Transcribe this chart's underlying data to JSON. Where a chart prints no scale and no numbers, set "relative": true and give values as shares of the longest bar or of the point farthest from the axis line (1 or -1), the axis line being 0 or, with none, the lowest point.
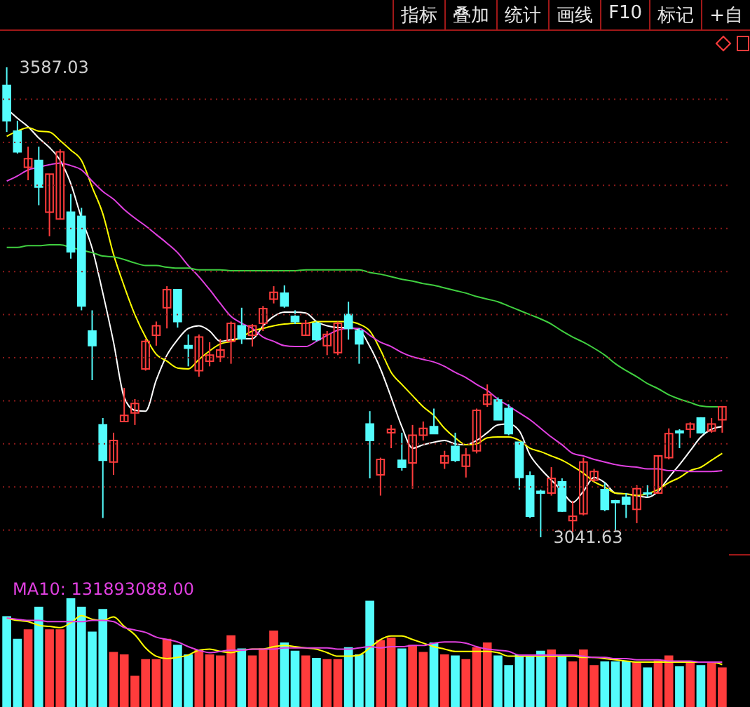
{
  "chart_data": [
    {
      "type": "candlestick",
      "categories": [
        null,
        null,
        null,
        null,
        null,
        null,
        null,
        null,
        null,
        null,
        null,
        null,
        null,
        null,
        null,
        null,
        null,
        null,
        null,
        null,
        null,
        null,
        null,
        null,
        null,
        null,
        null,
        null,
        null,
        null,
        null,
        null,
        null,
        null,
        null,
        null,
        null,
        null,
        null,
        null,
        null,
        null,
        null,
        null,
        null,
        null,
        null,
        null,
        null,
        null,
        null,
        null,
        null,
        null,
        null,
        null,
        null,
        null,
        null,
        null,
        null,
        null,
        null,
        null,
        null,
        null,
        null,
        null
      ],
      "ohlc": [
        [
          3566,
          3587.03,
          3512,
          3525
        ],
        [
          3513,
          3525,
          3487,
          3489
        ],
        [
          3471,
          3495,
          3456,
          3481
        ],
        [
          3479,
          3495,
          3427,
          3448
        ],
        [
          3419,
          3463,
          3391,
          3463
        ],
        [
          3411,
          3492,
          3411,
          3489
        ],
        [
          3419,
          3440,
          3365,
          3373
        ],
        [
          3414,
          3424,
          3305,
          3310
        ],
        [
          3281,
          3305,
          3224,
          3264
        ],
        [
          3172,
          3180,
          3064,
          3131
        ],
        [
          3129,
          3163,
          3114,
          3154
        ],
        [
          3176,
          3215,
          3176,
          3183
        ],
        [
          3186,
          3202,
          3172,
          3197
        ],
        [
          3237,
          3272,
          3235,
          3269
        ],
        [
          3276,
          3292,
          3264,
          3287
        ],
        [
          3308,
          3333,
          3284,
          3329
        ],
        [
          3329,
          3329,
          3285,
          3292
        ],
        [
          3264,
          3277,
          3240,
          3261
        ],
        [
          3235,
          3277,
          3228,
          3274
        ],
        [
          3246,
          3268,
          3240,
          3253
        ],
        [
          3251,
          3272,
          3245,
          3259
        ],
        [
          3269,
          3292,
          3243,
          3290
        ],
        [
          3287,
          3308,
          3266,
          3272
        ],
        [
          3276,
          3289,
          3263,
          3287
        ],
        [
          3290,
          3310,
          3281,
          3307
        ],
        [
          3318,
          3333,
          3313,
          3326
        ],
        [
          3325,
          3334,
          3308,
          3310
        ],
        [
          3298,
          3305,
          3289,
          3292
        ],
        [
          3276,
          3294,
          3276,
          3290
        ],
        [
          3290,
          3292,
          3269,
          3271
        ],
        [
          3264,
          3281,
          3253,
          3277
        ],
        [
          3256,
          3292,
          3253,
          3290
        ],
        [
          3300,
          3315,
          3271,
          3284
        ],
        [
          3281,
          3284,
          3243,
          3266
        ],
        [
          3173,
          3188,
          3110,
          3154
        ],
        [
          3114,
          3134,
          3090,
          3132
        ],
        [
          3163,
          3172,
          3145,
          3167
        ],
        [
          3131,
          3163,
          3119,
          3123
        ],
        [
          3128,
          3172,
          3098,
          3160
        ],
        [
          3160,
          3176,
          3154,
          3168
        ],
        [
          3170,
          3191,
          3162,
          3162
        ],
        [
          3128,
          3142,
          3121,
          3136
        ],
        [
          3147,
          3163,
          3129,
          3131
        ],
        [
          3124,
          3145,
          3111,
          3137
        ],
        [
          3142,
          3191,
          3139,
          3189
        ],
        [
          3196,
          3219,
          3193,
          3207
        ],
        [
          3201,
          3204,
          3178,
          3178
        ],
        [
          3191,
          3196,
          3160,
          3162
        ],
        [
          3152,
          3152,
          3097,
          3111
        ],
        [
          3113,
          3118,
          3064,
          3066
        ],
        [
          3095,
          3097,
          3041.63,
          3093
        ],
        [
          3093,
          3123,
          3090,
          3110
        ],
        [
          3106,
          3110,
          3071,
          3072
        ],
        [
          3061,
          3084,
          3048,
          3066
        ],
        [
          3069,
          3134,
          3067,
          3129
        ],
        [
          3108,
          3121,
          3106,
          3118
        ],
        [
          3097,
          3105,
          3072,
          3074
        ],
        [
          3084,
          3085,
          3049,
          3082
        ],
        [
          3088,
          3093,
          3064,
          3080
        ],
        [
          3074,
          3102,
          3058,
          3098
        ],
        [
          3093,
          3102,
          3088,
          3092
        ],
        [
          3093,
          3137,
          3092,
          3136
        ],
        [
          3134,
          3168,
          3132,
          3162
        ],
        [
          3165,
          3167,
          3145,
          3163
        ],
        [
          3167,
          3175,
          3157,
          3173
        ],
        [
          3180,
          3181,
          3162,
          3163
        ],
        [
          3165,
          3180,
          3163,
          3173
        ],
        [
          3178,
          3194,
          3163,
          3193
        ]
      ],
      "colors": [
        "#54fcfc",
        "#54fcfc",
        "#ff3c3c",
        "#54fcfc",
        "#ff3c3c",
        "#ff3c3c",
        "#54fcfc",
        "#54fcfc",
        "#54fcfc",
        "#54fcfc",
        "#ff3c3c",
        "#ff3c3c",
        "#ff3c3c",
        "#ff3c3c",
        "#ff3c3c",
        "#ff3c3c",
        "#54fcfc",
        "#54fcfc",
        "#ff3c3c",
        "#ff3c3c",
        "#ff3c3c",
        "#ff3c3c",
        "#54fcfc",
        "#ff3c3c",
        "#ff3c3c",
        "#ff3c3c",
        "#54fcfc",
        "#54fcfc",
        "#ff3c3c",
        "#54fcfc",
        "#ff3c3c",
        "#ff3c3c",
        "#54fcfc",
        "#54fcfc",
        "#54fcfc",
        "#ff3c3c",
        "#ff3c3c",
        "#54fcfc",
        "#ff3c3c",
        "#ff3c3c",
        "#54fcfc",
        "#ff3c3c",
        "#54fcfc",
        "#ff3c3c",
        "#ff3c3c",
        "#ff3c3c",
        "#54fcfc",
        "#54fcfc",
        "#54fcfc",
        "#54fcfc",
        "#54fcfc",
        "#ff3c3c",
        "#54fcfc",
        "#ff3c3c",
        "#ff3c3c",
        "#ff3c3c",
        "#54fcfc",
        "#54fcfc",
        "#54fcfc",
        "#ff3c3c",
        "#54fcfc",
        "#ff3c3c",
        "#ff3c3c",
        "#54fcfc",
        "#ff3c3c",
        "#54fcfc",
        "#ff3c3c",
        "#ff3c3c"
      ],
      "series": [
        {
          "type": "line",
          "color": "#ffffff",
          "values": [
            3539,
            3528,
            3518,
            3505,
            3494,
            3479,
            3452,
            3412,
            3377,
            3325,
            3268,
            3204,
            3189,
            3188,
            3224,
            3253,
            3271,
            3284,
            3287,
            3281,
            3269,
            3271,
            3272,
            3272,
            3287,
            3298,
            3303,
            3303,
            3302,
            3292,
            3287,
            3285,
            3285,
            3282,
            3263,
            3237,
            3204,
            3170,
            3145,
            3149,
            3152,
            3154,
            3150,
            3149,
            3154,
            3163,
            3172,
            3173,
            3165,
            3137,
            3121,
            3108,
            3095,
            3082,
            3095,
            3111,
            3105,
            3093,
            3092,
            3090,
            3088,
            3095,
            3111,
            3126,
            3142,
            3158,
            3167,
            3170
          ]
        },
        {
          "type": "line",
          "color": "#ffff00",
          "values": [
            3507,
            3513,
            3517,
            3513,
            3512,
            3502,
            3491,
            3479,
            3448,
            3417,
            3370,
            3333,
            3300,
            3274,
            3254,
            3246,
            3238,
            3237,
            3248,
            3258,
            3266,
            3269,
            3274,
            3281,
            3284,
            3287,
            3289,
            3290,
            3290,
            3292,
            3292,
            3292,
            3292,
            3289,
            3281,
            3259,
            3233,
            3219,
            3206,
            3193,
            3183,
            3168,
            3157,
            3149,
            3150,
            3157,
            3158,
            3158,
            3154,
            3145,
            3141,
            3136,
            3131,
            3124,
            3116,
            3106,
            3100,
            3093,
            3092,
            3090,
            3092,
            3097,
            3105,
            3111,
            3119,
            3123,
            3131,
            3139
          ]
        },
        {
          "type": "line",
          "color": "#e040e0",
          "values": [
            3455,
            3461,
            3468,
            3471,
            3474,
            3476,
            3473,
            3468,
            3455,
            3443,
            3434,
            3422,
            3412,
            3403,
            3393,
            3383,
            3372,
            3357,
            3344,
            3329,
            3313,
            3298,
            3290,
            3284,
            3274,
            3269,
            3264,
            3263,
            3263,
            3269,
            3276,
            3282,
            3284,
            3284,
            3276,
            3268,
            3263,
            3256,
            3251,
            3248,
            3245,
            3240,
            3233,
            3227,
            3219,
            3212,
            3202,
            3194,
            3186,
            3178,
            3168,
            3158,
            3149,
            3139,
            3136,
            3132,
            3129,
            3126,
            3124,
            3123,
            3121,
            3121,
            3119,
            3119,
            3118,
            3118,
            3118,
            3119
          ]
        },
        {
          "type": "line",
          "color": "#40d040",
          "values": [
            3378,
            3378,
            3380,
            3380,
            3381,
            3381,
            3378,
            3375,
            3372,
            3368,
            3367,
            3364,
            3360,
            3357,
            3357,
            3355,
            3354,
            3354,
            3352,
            3352,
            3352,
            3351,
            3351,
            3351,
            3351,
            3351,
            3351,
            3351,
            3352,
            3352,
            3352,
            3352,
            3352,
            3352,
            3349,
            3347,
            3344,
            3341,
            3339,
            3336,
            3334,
            3331,
            3328,
            3325,
            3321,
            3318,
            3315,
            3310,
            3305,
            3300,
            3295,
            3289,
            3281,
            3274,
            3268,
            3261,
            3253,
            3243,
            3235,
            3228,
            3220,
            3214,
            3207,
            3202,
            3198,
            3194,
            3193,
            3193
          ]
        }
      ],
      "yticks": [
        {
          "value": 3050,
          "label": null
        },
        {
          "value": 3100,
          "label": null
        },
        {
          "value": 3150,
          "label": null
        },
        {
          "value": 3200,
          "label": null
        },
        {
          "value": 3250,
          "label": null
        },
        {
          "value": 3300,
          "label": null
        },
        {
          "value": 3350,
          "label": null
        },
        {
          "value": 3400,
          "label": null
        },
        {
          "value": 3450,
          "label": null
        },
        {
          "value": 3500,
          "label": null
        },
        {
          "value": 3550,
          "label": null
        }
      ],
      "grid": "y",
      "tick_labels": false,
      "annotations": [
        "3587.03",
        "3041.63",
        "指标",
        "叠加",
        "统计",
        "画线",
        "F10",
        "标记",
        "+自"
      ]
    },
    {
      "type": "bar",
      "relative": true,
      "categories": [
        null,
        null,
        null,
        null,
        null,
        null,
        null,
        null,
        null,
        null,
        null,
        null,
        null,
        null,
        null,
        null,
        null,
        null,
        null,
        null,
        null,
        null,
        null,
        null,
        null,
        null,
        null,
        null,
        null,
        null,
        null,
        null,
        null,
        null,
        null,
        null,
        null,
        null,
        null,
        null,
        null,
        null,
        null,
        null,
        null,
        null,
        null,
        null,
        null,
        null,
        null,
        null,
        null,
        null,
        null,
        null,
        null,
        null,
        null,
        null,
        null,
        null,
        null,
        null,
        null,
        null,
        null,
        null
      ],
      "series": [
        {
          "type": "bar",
          "values": [
            0.85,
            0.66,
            0.74,
            0.93,
            0.74,
            0.74,
            1,
            0.93,
            0.72,
            0.91,
            0.55,
            0.53,
            0.35,
            0.49,
            0.49,
            0.66,
            0.61,
            0.53,
            0.57,
            0.53,
            0.52,
            0.69,
            0.58,
            0.52,
            0.58,
            0.73,
            0.63,
            0.56,
            0.52,
            0.5,
            0.49,
            0.49,
            0.59,
            0.53,
            0.98,
            0.65,
            0.67,
            0.58,
            0.61,
            0.55,
            0.63,
            0.53,
            0.52,
            0.49,
            0.59,
            0.63,
            0.52,
            0.44,
            0.53,
            0.52,
            0.56,
            0.57,
            0.53,
            0.47,
            0.57,
            0.44,
            0.47,
            0.47,
            0.47,
            0.47,
            0.42,
            0.48,
            0.52,
            0.43,
            0.47,
            0.44,
            0.47,
            0.42
          ],
          "colors": [
            "#54fcfc",
            "#54fcfc",
            "#ff3c3c",
            "#54fcfc",
            "#ff3c3c",
            "#ff3c3c",
            "#54fcfc",
            "#54fcfc",
            "#54fcfc",
            "#54fcfc",
            "#ff3c3c",
            "#ff3c3c",
            "#ff3c3c",
            "#ff3c3c",
            "#ff3c3c",
            "#ff3c3c",
            "#54fcfc",
            "#54fcfc",
            "#ff3c3c",
            "#ff3c3c",
            "#ff3c3c",
            "#ff3c3c",
            "#54fcfc",
            "#ff3c3c",
            "#ff3c3c",
            "#ff3c3c",
            "#54fcfc",
            "#54fcfc",
            "#ff3c3c",
            "#54fcfc",
            "#ff3c3c",
            "#ff3c3c",
            "#54fcfc",
            "#54fcfc",
            "#54fcfc",
            "#ff3c3c",
            "#ff3c3c",
            "#54fcfc",
            "#ff3c3c",
            "#ff3c3c",
            "#54fcfc",
            "#ff3c3c",
            "#54fcfc",
            "#ff3c3c",
            "#ff3c3c",
            "#ff3c3c",
            "#54fcfc",
            "#54fcfc",
            "#54fcfc",
            "#54fcfc",
            "#54fcfc",
            "#ff3c3c",
            "#54fcfc",
            "#ff3c3c",
            "#ff3c3c",
            "#ff3c3c",
            "#54fcfc",
            "#54fcfc",
            "#54fcfc",
            "#ff3c3c",
            "#54fcfc",
            "#ff3c3c",
            "#ff3c3c",
            "#54fcfc",
            "#ff3c3c",
            "#54fcfc",
            "#ff3c3c",
            "#ff3c3c"
          ]
        },
        {
          "type": "line",
          "color": "#ffff00",
          "values": [
            0.84,
            0.82,
            0.81,
            0.78,
            0.77,
            0.76,
            0.8,
            0.86,
            0.83,
            0.82,
            0.85,
            0.77,
            0.7,
            0.59,
            0.52,
            0.5,
            0.51,
            0.53,
            0.57,
            0.58,
            0.56,
            0.55,
            0.57,
            0.58,
            0.58,
            0.6,
            0.61,
            0.6,
            0.59,
            0.58,
            0.55,
            0.52,
            0.52,
            0.53,
            0.59,
            0.66,
            0.69,
            0.69,
            0.66,
            0.63,
            0.6,
            0.58,
            0.56,
            0.56,
            0.56,
            0.56,
            0.55,
            0.52,
            0.52,
            0.52,
            0.52,
            0.52,
            0.52,
            0.52,
            0.51,
            0.51,
            0.5,
            0.49,
            0.48,
            0.47,
            0.47,
            0.47,
            0.47,
            0.47,
            0.47,
            0.47,
            0.47,
            0.45
          ]
        },
        {
          "type": "line",
          "color": "#e040e0",
          "values": [
            0.84,
            0.83,
            0.82,
            0.82,
            0.81,
            0.81,
            0.81,
            0.81,
            0.82,
            0.82,
            0.81,
            0.76,
            0.74,
            0.72,
            0.68,
            0.66,
            0.64,
            0.6,
            0.57,
            0.55,
            0.56,
            0.57,
            0.57,
            0.58,
            0.58,
            0.58,
            0.59,
            0.59,
            0.59,
            0.59,
            0.59,
            0.58,
            0.58,
            0.59,
            0.6,
            0.59,
            0.6,
            0.6,
            0.61,
            0.61,
            0.63,
            0.64,
            0.64,
            0.63,
            0.6,
            0.58,
            0.57,
            0.56,
            0.53,
            0.53,
            0.53,
            0.53,
            0.53,
            0.53,
            0.52,
            0.51,
            0.51,
            0.5,
            0.5,
            0.49,
            0.49,
            0.49,
            0.48,
            0.48,
            0.48,
            0.47,
            0.47,
            0.47
          ]
        }
      ],
      "annotations": [
        "MA10: 131893088.00"
      ]
    }
  ]
}
